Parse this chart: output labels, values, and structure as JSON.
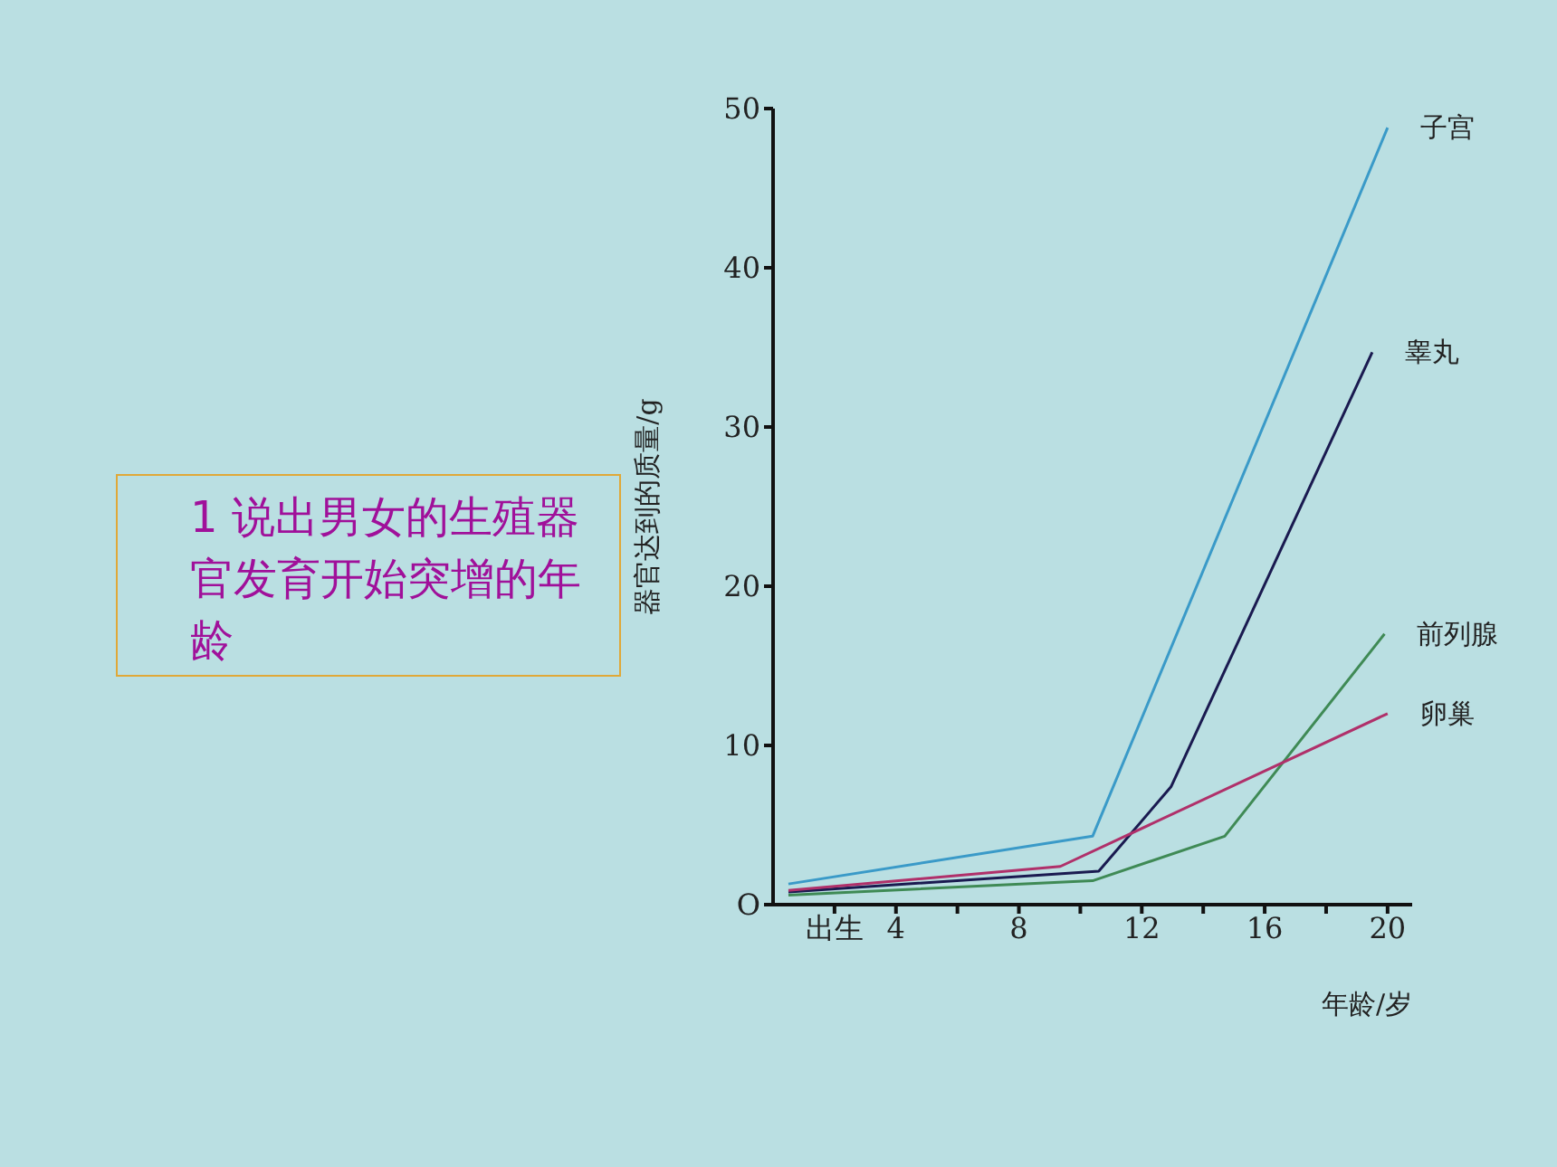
{
  "chart_data": {
    "type": "line",
    "ylabel": "器官达到的质量/g",
    "xlabel": "年龄/岁",
    "xlim": [
      0,
      20.8
    ],
    "xticks": [
      {
        "value": 2,
        "label": "出生"
      },
      4,
      {
        "value": 6,
        "label": null
      },
      8,
      {
        "value": 10,
        "label": null
      },
      12,
      {
        "value": 14,
        "label": null
      },
      16,
      {
        "value": 18,
        "label": null
      },
      20
    ],
    "ylim": [
      0,
      50
    ],
    "yticks": [
      {
        "value": 0,
        "label": "O"
      },
      10,
      20,
      30,
      40,
      50
    ],
    "marker": "none",
    "line_style": "solid",
    "annotations": [
      "1 说出男女的生殖器官发育开始突增的年龄"
    ],
    "series": [
      {
        "name": "子宫",
        "color": "#3a9ac8",
        "x": [
          0.5,
          10.4,
          20
        ],
        "values": [
          1.3,
          4.3,
          48.8
        ]
      },
      {
        "name": "睾丸",
        "color": "#1a1a50",
        "x": [
          0.5,
          10.6,
          12.95,
          19.5
        ],
        "values": [
          0.8,
          2.1,
          7.4,
          34.7
        ]
      },
      {
        "name": "前列腺",
        "color": "#3f8a55",
        "x": [
          0.5,
          10.4,
          14.7,
          19.9
        ],
        "values": [
          0.6,
          1.5,
          4.3,
          17
        ]
      },
      {
        "name": "卵巢",
        "color": "#b0306a",
        "x": [
          0.5,
          9.35,
          20
        ],
        "values": [
          0.9,
          2.4,
          12
        ]
      }
    ]
  }
}
